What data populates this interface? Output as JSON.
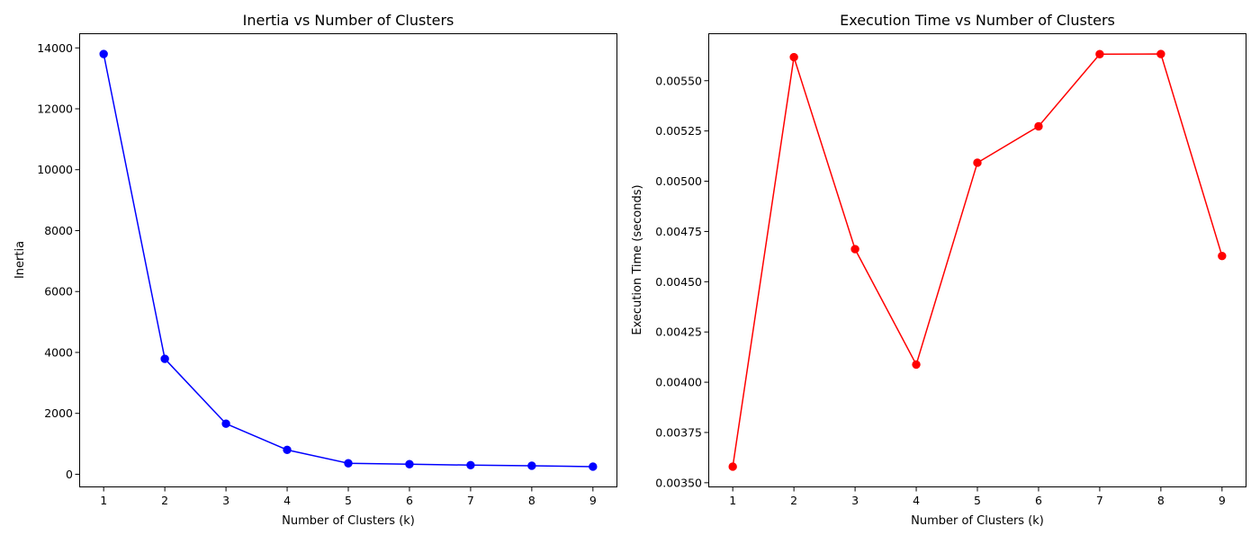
{
  "chart_data": [
    {
      "type": "line",
      "title": "Inertia vs Number of Clusters",
      "xlabel": "Number of Clusters (k)",
      "ylabel": "Inertia",
      "x": [
        1,
        2,
        3,
        4,
        5,
        6,
        7,
        8,
        9
      ],
      "xticks": [
        "1",
        "2",
        "3",
        "4",
        "5",
        "6",
        "7",
        "8",
        "9"
      ],
      "yticks": [
        0,
        2000,
        4000,
        6000,
        8000,
        10000,
        12000,
        14000
      ],
      "ytick_labels": [
        "0",
        "2000",
        "4000",
        "6000",
        "8000",
        "10000",
        "12000",
        "14000"
      ],
      "xlim": [
        0.6,
        9.4
      ],
      "ylim": [
        -430,
        14480
      ],
      "grid": false,
      "series": [
        {
          "color": "#0000ff",
          "marker": "circle",
          "values": [
            13800,
            3790,
            1660,
            800,
            360,
            330,
            300,
            280,
            250
          ]
        }
      ]
    },
    {
      "type": "line",
      "title": "Execution Time vs Number of Clusters",
      "xlabel": "Number of Clusters (k)",
      "ylabel": "Execution Time (seconds)",
      "x": [
        1,
        2,
        3,
        4,
        5,
        6,
        7,
        8,
        9
      ],
      "xticks": [
        "1",
        "2",
        "3",
        "4",
        "5",
        "6",
        "7",
        "8",
        "9"
      ],
      "yticks": [
        0.0035,
        0.00375,
        0.004,
        0.00425,
        0.0045,
        0.00475,
        0.005,
        0.00525,
        0.0055
      ],
      "ytick_labels": [
        "0.00350",
        "0.00375",
        "0.00400",
        "0.00425",
        "0.00450",
        "0.00475",
        "0.00500",
        "0.00525",
        "0.00550"
      ],
      "xlim": [
        0.6,
        9.4
      ],
      "ylim": [
        0.003477,
        0.005736
      ],
      "grid": false,
      "series": [
        {
          "color": "#ff0000",
          "marker": "circle",
          "values": [
            0.00358,
            0.005617,
            0.004662,
            0.004088,
            0.005092,
            0.005273,
            0.005632,
            0.005633,
            0.004628
          ]
        }
      ]
    }
  ]
}
